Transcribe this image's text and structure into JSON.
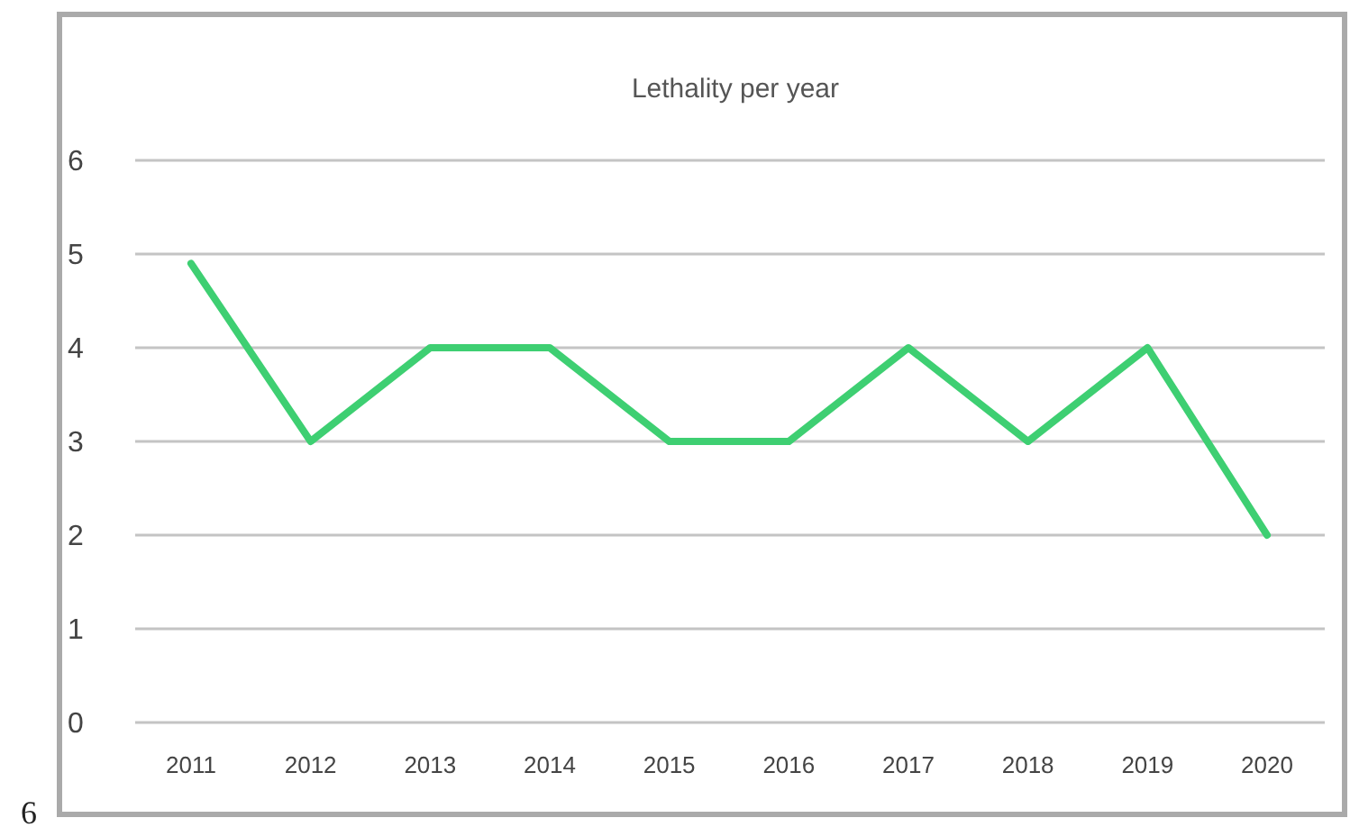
{
  "chart_data": {
    "type": "line",
    "title": "Lethality per year",
    "categories": [
      "2011",
      "2012",
      "2013",
      "2014",
      "2015",
      "2016",
      "2017",
      "2018",
      "2019",
      "2020"
    ],
    "series": [
      {
        "color": "#3ecf72",
        "values": [
          4.9,
          3,
          4,
          4,
          3,
          3,
          4,
          3,
          4,
          2
        ]
      }
    ],
    "ylim": [
      0,
      6
    ],
    "yticks": [
      0,
      1,
      2,
      3,
      4,
      5,
      6
    ],
    "grid": "y",
    "marker": "none",
    "line_style": "solid",
    "annotations": [
      "6"
    ]
  }
}
